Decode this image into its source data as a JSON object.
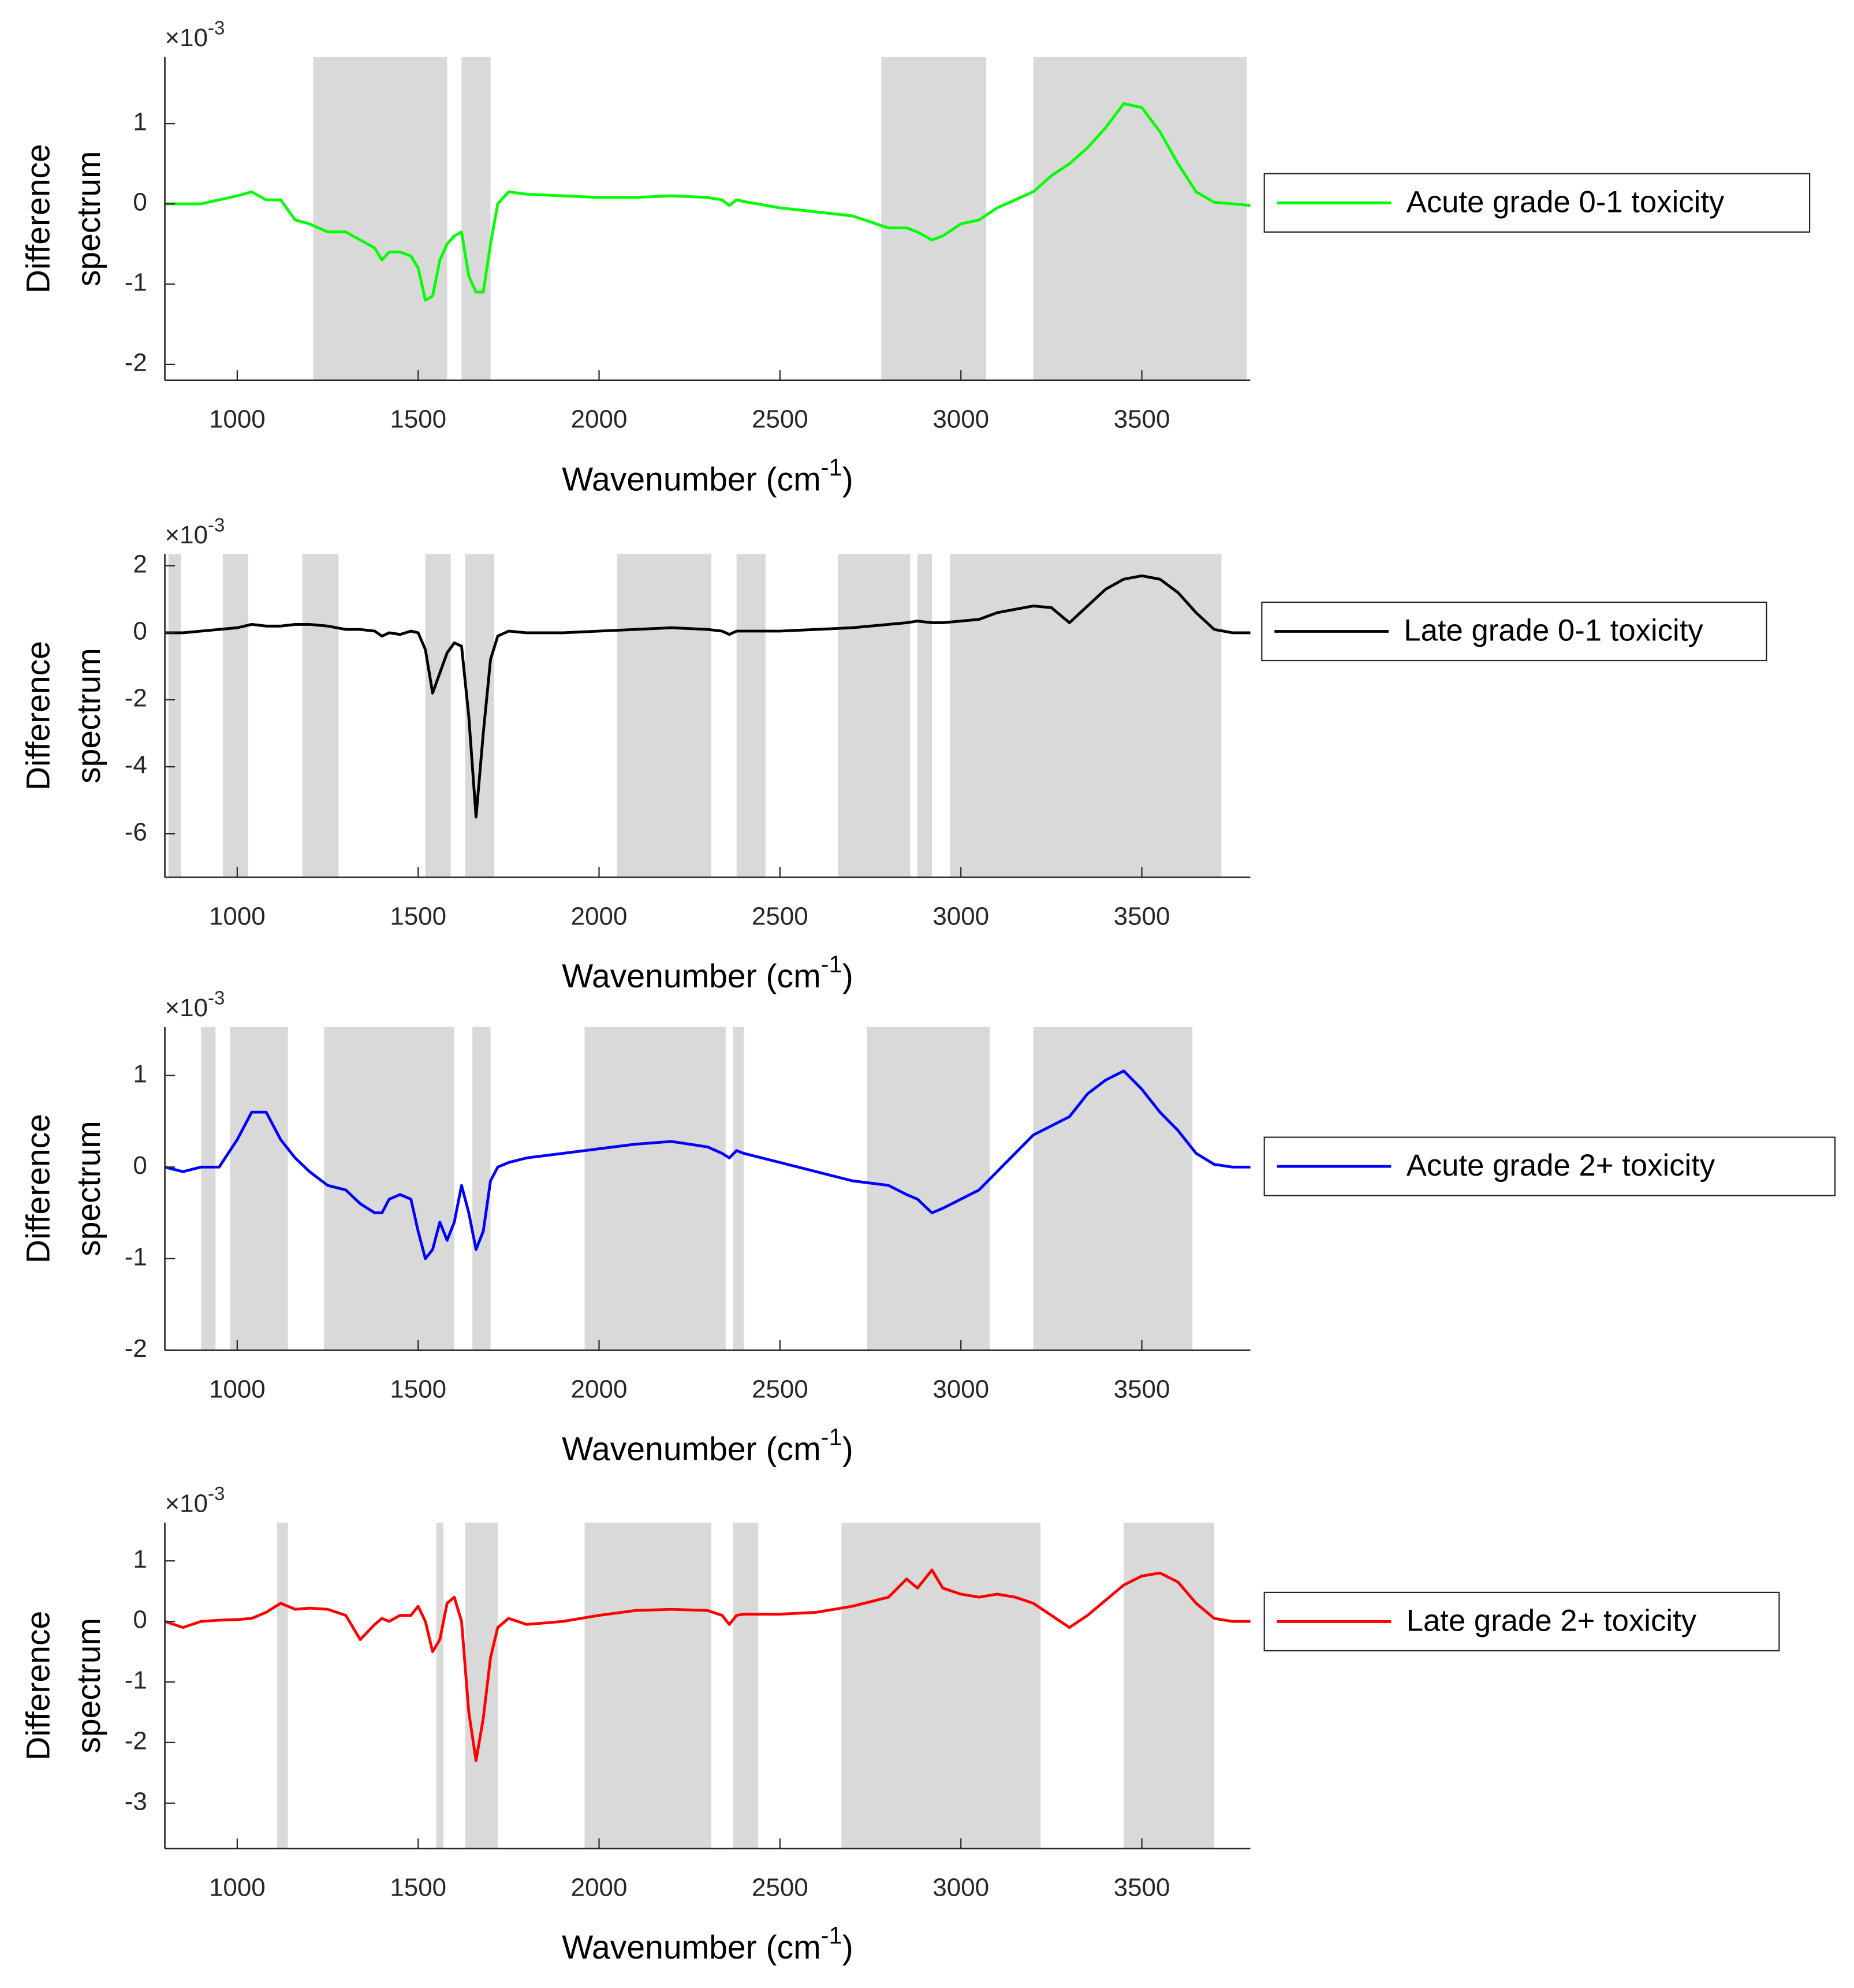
{
  "chart_data": [
    {
      "type": "line",
      "exponent": {
        "base": "×10",
        "power": "-3"
      },
      "ylabel": [
        "Difference",
        "spectrum"
      ],
      "xlabel": {
        "text": "Wavenumber (cm",
        "power": "-1",
        "close": ")"
      },
      "xlim": [
        800,
        3800
      ],
      "xticks": [
        1000,
        1500,
        2000,
        2500,
        3000,
        3500
      ],
      "ylim": [
        -2.2,
        1.83
      ],
      "yticks": [
        -2,
        -1,
        0,
        1
      ],
      "shaded_ranges": [
        [
          1210,
          1580
        ],
        [
          1620,
          1700
        ],
        [
          2780,
          3070
        ],
        [
          3200,
          3790
        ]
      ],
      "x": [
        800,
        850,
        900,
        950,
        1000,
        1040,
        1080,
        1120,
        1160,
        1200,
        1250,
        1300,
        1340,
        1380,
        1400,
        1420,
        1450,
        1480,
        1500,
        1520,
        1540,
        1560,
        1580,
        1600,
        1620,
        1640,
        1660,
        1680,
        1700,
        1720,
        1750,
        1800,
        1900,
        2000,
        2100,
        2200,
        2300,
        2340,
        2360,
        2380,
        2400,
        2500,
        2600,
        2700,
        2800,
        2850,
        2880,
        2920,
        2950,
        3000,
        3050,
        3100,
        3150,
        3200,
        3250,
        3300,
        3350,
        3400,
        3450,
        3500,
        3550,
        3600,
        3650,
        3700,
        3750,
        3800
      ],
      "series": [
        {
          "name": "Acute grade 0-1 toxicity",
          "color": "#00ff00",
          "values": [
            0,
            0,
            0,
            0.05,
            0.1,
            0.15,
            0.05,
            0.05,
            -0.2,
            -0.25,
            -0.35,
            -0.35,
            -0.45,
            -0.55,
            -0.7,
            -0.6,
            -0.6,
            -0.65,
            -0.8,
            -1.2,
            -1.15,
            -0.7,
            -0.5,
            -0.4,
            -0.35,
            -0.9,
            -1.1,
            -1.1,
            -0.5,
            0,
            0.15,
            0.12,
            0.1,
            0.08,
            0.08,
            0.1,
            0.08,
            0.05,
            -0.02,
            0.05,
            0.03,
            -0.05,
            -0.1,
            -0.15,
            -0.3,
            -0.3,
            -0.35,
            -0.45,
            -0.4,
            -0.25,
            -0.2,
            -0.05,
            0.05,
            0.15,
            0.35,
            0.5,
            0.7,
            0.95,
            1.25,
            1.2,
            0.9,
            0.5,
            0.15,
            0.02,
            0,
            -0.02
          ]
        }
      ]
    },
    {
      "type": "line",
      "exponent": {
        "base": "×10",
        "power": "-3"
      },
      "ylabel": [
        "Difference",
        "spectrum"
      ],
      "xlabel": {
        "text": "Wavenumber (cm",
        "power": "-1",
        "close": ")"
      },
      "xlim": [
        800,
        3800
      ],
      "xticks": [
        1000,
        1500,
        2000,
        2500,
        3000,
        3500
      ],
      "ylim": [
        -7.3,
        2.35
      ],
      "yticks": [
        -6,
        -4,
        -2,
        0,
        2
      ],
      "shaded_ranges": [
        [
          810,
          845
        ],
        [
          960,
          1030
        ],
        [
          1180,
          1280
        ],
        [
          1520,
          1590
        ],
        [
          1630,
          1710
        ],
        [
          2050,
          2310
        ],
        [
          2380,
          2460
        ],
        [
          2660,
          2860
        ],
        [
          2880,
          2920
        ],
        [
          2970,
          3720
        ]
      ],
      "x": [
        800,
        850,
        900,
        950,
        1000,
        1040,
        1080,
        1120,
        1160,
        1200,
        1250,
        1300,
        1340,
        1380,
        1400,
        1420,
        1450,
        1480,
        1500,
        1520,
        1540,
        1560,
        1580,
        1600,
        1620,
        1640,
        1660,
        1680,
        1700,
        1720,
        1750,
        1800,
        1900,
        2000,
        2100,
        2200,
        2300,
        2340,
        2360,
        2380,
        2400,
        2500,
        2600,
        2700,
        2800,
        2850,
        2880,
        2920,
        2950,
        3000,
        3050,
        3100,
        3150,
        3200,
        3250,
        3300,
        3350,
        3400,
        3450,
        3500,
        3550,
        3600,
        3650,
        3700,
        3750,
        3800
      ],
      "series": [
        {
          "name": "Late grade 0-1 toxicity",
          "color": "#000000",
          "values": [
            0,
            0,
            0.05,
            0.1,
            0.15,
            0.25,
            0.2,
            0.2,
            0.25,
            0.25,
            0.2,
            0.1,
            0.1,
            0.05,
            -0.1,
            0,
            -0.05,
            0.05,
            0,
            -0.5,
            -1.8,
            -1.2,
            -0.6,
            -0.3,
            -0.4,
            -2.5,
            -5.5,
            -3,
            -0.8,
            -0.1,
            0.05,
            0,
            0,
            0.05,
            0.1,
            0.15,
            0.1,
            0.05,
            -0.05,
            0.05,
            0.05,
            0.05,
            0.1,
            0.15,
            0.25,
            0.3,
            0.35,
            0.3,
            0.3,
            0.35,
            0.4,
            0.6,
            0.7,
            0.8,
            0.75,
            0.3,
            0.8,
            1.3,
            1.6,
            1.7,
            1.6,
            1.2,
            0.6,
            0.1,
            0,
            0
          ]
        }
      ]
    },
    {
      "type": "line",
      "exponent": {
        "base": "×10",
        "power": "-3"
      },
      "ylabel": [
        "Difference",
        "spectrum"
      ],
      "xlabel": {
        "text": "Wavenumber (cm",
        "power": "-1",
        "close": ")"
      },
      "xlim": [
        800,
        3800
      ],
      "xticks": [
        1000,
        1500,
        2000,
        2500,
        3000,
        3500
      ],
      "ylim": [
        -2,
        1.53
      ],
      "yticks": [
        -2,
        -1,
        0,
        1
      ],
      "shaded_ranges": [
        [
          900,
          940
        ],
        [
          980,
          1140
        ],
        [
          1240,
          1600
        ],
        [
          1650,
          1700
        ],
        [
          1960,
          2350
        ],
        [
          2370,
          2400
        ],
        [
          2740,
          3080
        ],
        [
          3200,
          3640
        ]
      ],
      "x": [
        800,
        850,
        900,
        950,
        1000,
        1040,
        1080,
        1120,
        1160,
        1200,
        1250,
        1300,
        1340,
        1380,
        1400,
        1420,
        1450,
        1480,
        1500,
        1520,
        1540,
        1560,
        1580,
        1600,
        1620,
        1640,
        1660,
        1680,
        1700,
        1720,
        1750,
        1800,
        1900,
        2000,
        2100,
        2200,
        2300,
        2340,
        2360,
        2380,
        2400,
        2500,
        2600,
        2700,
        2800,
        2850,
        2880,
        2920,
        2950,
        3000,
        3050,
        3100,
        3150,
        3200,
        3250,
        3300,
        3350,
        3400,
        3450,
        3500,
        3550,
        3600,
        3650,
        3700,
        3750,
        3800
      ],
      "series": [
        {
          "name": "Acute grade 2+ toxicity",
          "color": "#0000ff",
          "values": [
            0,
            -0.05,
            0,
            0,
            0.3,
            0.6,
            0.6,
            0.3,
            0.1,
            -0.05,
            -0.2,
            -0.25,
            -0.4,
            -0.5,
            -0.5,
            -0.35,
            -0.3,
            -0.35,
            -0.7,
            -1.0,
            -0.9,
            -0.6,
            -0.8,
            -0.6,
            -0.2,
            -0.5,
            -0.9,
            -0.7,
            -0.15,
            0,
            0.05,
            0.1,
            0.15,
            0.2,
            0.25,
            0.28,
            0.22,
            0.15,
            0.1,
            0.18,
            0.15,
            0.05,
            -0.05,
            -0.15,
            -0.2,
            -0.3,
            -0.35,
            -0.5,
            -0.45,
            -0.35,
            -0.25,
            -0.05,
            0.15,
            0.35,
            0.45,
            0.55,
            0.8,
            0.95,
            1.05,
            0.85,
            0.6,
            0.4,
            0.15,
            0.03,
            0,
            0
          ]
        }
      ]
    },
    {
      "type": "line",
      "exponent": {
        "base": "×10",
        "power": "-3"
      },
      "ylabel": [
        "Difference",
        "spectrum"
      ],
      "xlabel": {
        "text": "Wavenumber (cm",
        "power": "-1",
        "close": ")"
      },
      "xlim": [
        800,
        3800
      ],
      "xticks": [
        1000,
        1500,
        2000,
        2500,
        3000,
        3500
      ],
      "ylim": [
        -3.75,
        1.63
      ],
      "yticks": [
        -3,
        -2,
        -1,
        0,
        1
      ],
      "shaded_ranges": [
        [
          1110,
          1140
        ],
        [
          1550,
          1570
        ],
        [
          1630,
          1720
        ],
        [
          1960,
          2310
        ],
        [
          2370,
          2440
        ],
        [
          2670,
          3220
        ],
        [
          3450,
          3700
        ]
      ],
      "x": [
        800,
        850,
        900,
        950,
        1000,
        1040,
        1080,
        1120,
        1160,
        1200,
        1250,
        1300,
        1340,
        1380,
        1400,
        1420,
        1450,
        1480,
        1500,
        1520,
        1540,
        1560,
        1580,
        1600,
        1620,
        1640,
        1660,
        1680,
        1700,
        1720,
        1750,
        1800,
        1900,
        2000,
        2100,
        2200,
        2300,
        2340,
        2360,
        2380,
        2400,
        2500,
        2600,
        2700,
        2800,
        2850,
        2880,
        2920,
        2950,
        3000,
        3050,
        3100,
        3150,
        3200,
        3250,
        3300,
        3350,
        3400,
        3450,
        3500,
        3550,
        3600,
        3650,
        3700,
        3750,
        3800
      ],
      "series": [
        {
          "name": "Late grade 2+ toxicity",
          "color": "#ff0000",
          "values": [
            0,
            -0.1,
            0,
            0.02,
            0.03,
            0.05,
            0.15,
            0.3,
            0.2,
            0.22,
            0.2,
            0.1,
            -0.3,
            -0.05,
            0.05,
            0,
            0.1,
            0.1,
            0.25,
            0,
            -0.5,
            -0.3,
            0.3,
            0.4,
            0,
            -1.5,
            -2.3,
            -1.6,
            -0.6,
            -0.1,
            0.05,
            -0.05,
            0,
            0.1,
            0.18,
            0.2,
            0.18,
            0.1,
            -0.05,
            0.1,
            0.12,
            0.12,
            0.15,
            0.25,
            0.4,
            0.7,
            0.55,
            0.85,
            0.55,
            0.45,
            0.4,
            0.45,
            0.4,
            0.3,
            0.1,
            -0.1,
            0.1,
            0.35,
            0.6,
            0.75,
            0.8,
            0.65,
            0.3,
            0.05,
            0,
            0
          ]
        }
      ]
    }
  ]
}
